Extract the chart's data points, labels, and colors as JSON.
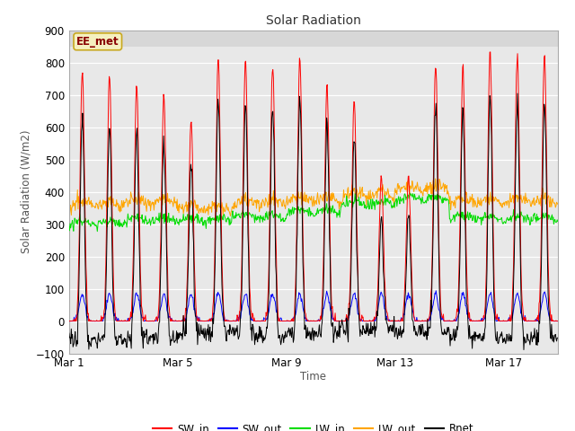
{
  "title": "Solar Radiation",
  "xlabel": "Time",
  "ylabel": "Solar Radiation (W/m2)",
  "ylim": [
    -100,
    900
  ],
  "yticks": [
    -100,
    0,
    100,
    200,
    300,
    400,
    500,
    600,
    700,
    800,
    900
  ],
  "fig_bg_color": "#f0f0f0",
  "plot_bg_color": "#e8e8e8",
  "plot_bg_top": "#d0d0d0",
  "annotation_text": "EE_met",
  "annotation_bg": "#f5f0c0",
  "annotation_border": "#c8a820",
  "annotation_text_color": "#880000",
  "colors": {
    "SW_in": "#ff0000",
    "SW_out": "#0000ff",
    "LW_in": "#00dd00",
    "LW_out": "#ffa500",
    "Rnet": "#000000"
  },
  "x_tick_labels": [
    "Mar 1",
    "Mar 5",
    "Mar 9",
    "Mar 13",
    "Mar 17"
  ],
  "x_tick_positions": [
    0,
    4,
    8,
    12,
    16
  ],
  "n_days": 18,
  "pts_per_day": 48,
  "seed": 42
}
